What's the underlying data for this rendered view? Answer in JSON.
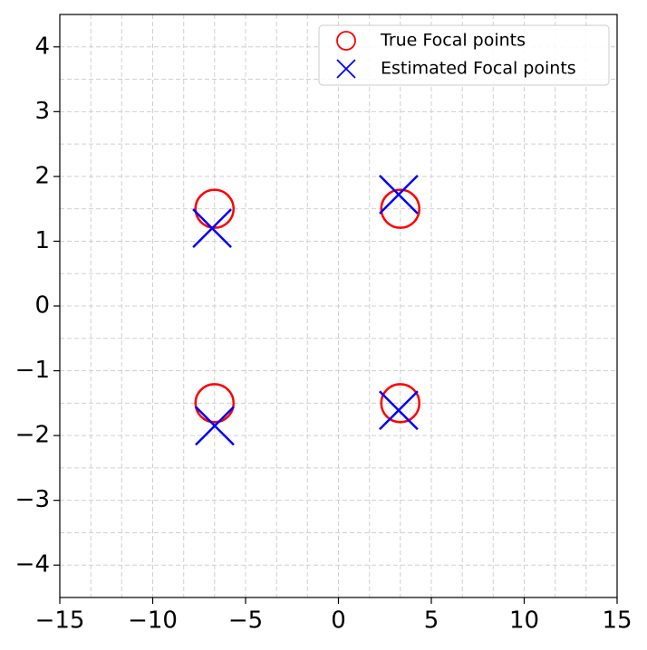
{
  "chart_data": {
    "type": "scatter",
    "series": [
      {
        "name": "True Focal points",
        "color": "#ff0000",
        "marker": "circle",
        "x": [
          -6.67,
          3.33,
          -6.67,
          3.33
        ],
        "values": [
          1.5,
          1.5,
          -1.5,
          -1.5
        ]
      },
      {
        "name": "Estimated Focal points",
        "color": "#0000ff",
        "marker": "x",
        "x": [
          -6.8,
          3.24,
          -6.66,
          3.24
        ],
        "values": [
          1.2,
          1.72,
          -1.85,
          -1.61
        ]
      }
    ],
    "xlim": [
      -15,
      15
    ],
    "ylim": [
      -4.5,
      4.5
    ],
    "xticks": [
      {
        "value": -15,
        "label": "−15"
      },
      {
        "value": -10,
        "label": "−10"
      },
      {
        "value": -5,
        "label": "−5"
      },
      0,
      5,
      10,
      15
    ],
    "yticks": [
      {
        "value": -4,
        "label": "−4"
      },
      {
        "value": -3,
        "label": "−3"
      },
      {
        "value": -2,
        "label": "−2"
      },
      {
        "value": -1,
        "label": "−1"
      },
      0,
      1,
      2,
      3,
      4
    ],
    "xgrid": [
      -15,
      -13.33,
      -11.67,
      -10,
      -8.33,
      -6.67,
      -5,
      -3.33,
      -1.67,
      0,
      1.67,
      3.33,
      5,
      6.67,
      8.33,
      10,
      11.67,
      13.33,
      15
    ],
    "ygrid": [
      -4.5,
      -4,
      -3.5,
      -3,
      -2.5,
      -2,
      -1.5,
      -1,
      -0.5,
      0,
      0.5,
      1,
      1.5,
      2,
      2.5,
      3,
      3.5,
      4,
      4.5
    ],
    "grid": true,
    "legend": "upper right"
  }
}
